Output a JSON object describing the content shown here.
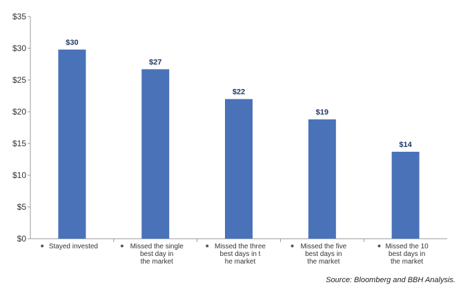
{
  "chart_data": {
    "type": "bar",
    "title": "",
    "xlabel": "",
    "ylabel": "",
    "ylim": [
      0,
      35
    ],
    "y_ticks": [
      "$0",
      "$5",
      "$10",
      "$15",
      "$20",
      "$25",
      "$30",
      "$35"
    ],
    "y_tick_values": [
      0,
      5,
      10,
      15,
      20,
      25,
      30,
      35
    ],
    "categories": [
      [
        "Stayed invested"
      ],
      [
        "Missed the single",
        "best day in",
        "the market"
      ],
      [
        "Missed the three",
        "best days in t",
        "he market"
      ],
      [
        "Missed the five",
        "best days in",
        "the market"
      ],
      [
        "Missed the 10",
        "best days in",
        "the market"
      ]
    ],
    "values": [
      29.8,
      26.7,
      22.0,
      18.8,
      13.7
    ],
    "data_labels": [
      "$30",
      "$27",
      "$22",
      "$19",
      "$14"
    ],
    "bar_color": "#4a72b8",
    "label_color": "#1f3864",
    "grid": false,
    "legend": "none"
  },
  "source_note": "Source: Bloomberg and BBH Analysis."
}
